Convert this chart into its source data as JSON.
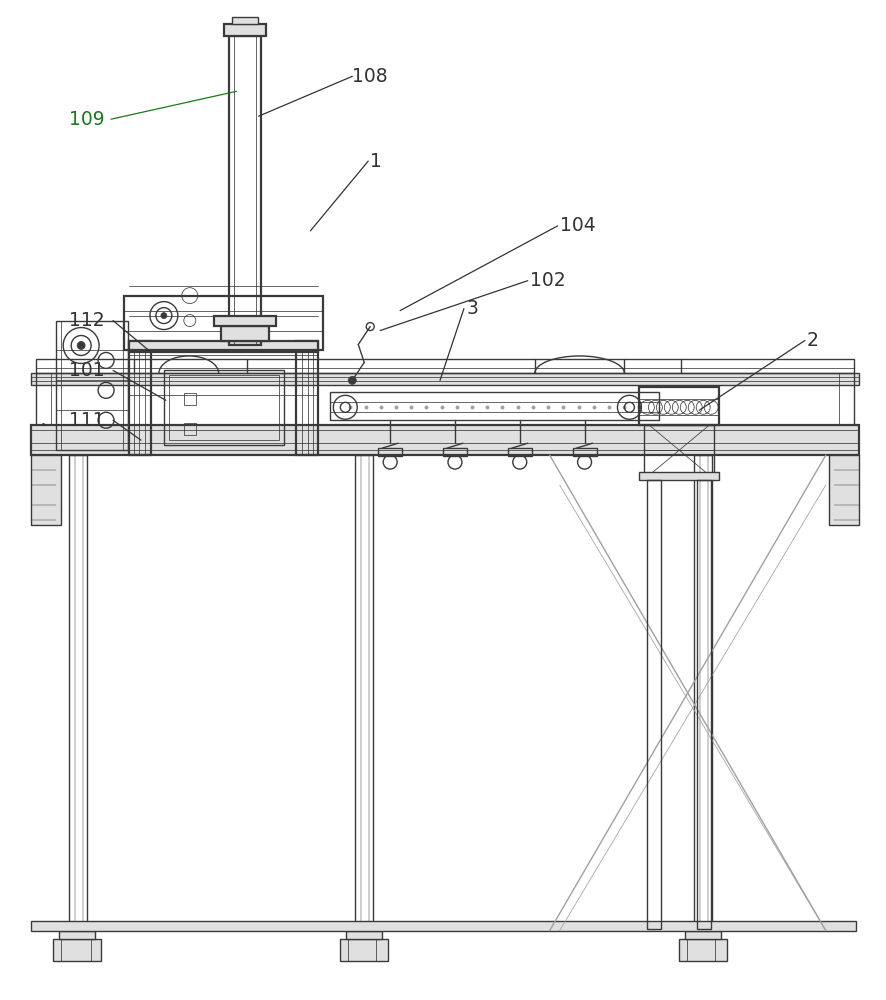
{
  "bg_color": "#ffffff",
  "lc": "#3a3a3a",
  "lc_green": "#1a7a1a",
  "gray1": "#c8c8c8",
  "gray2": "#a0a0a0",
  "gray3": "#e0e0e0",
  "figsize": [
    8.87,
    10.0
  ],
  "dpi": 100,
  "lw_thick": 1.6,
  "lw_med": 1.0,
  "lw_thin": 0.55,
  "lw_vthin": 0.35
}
